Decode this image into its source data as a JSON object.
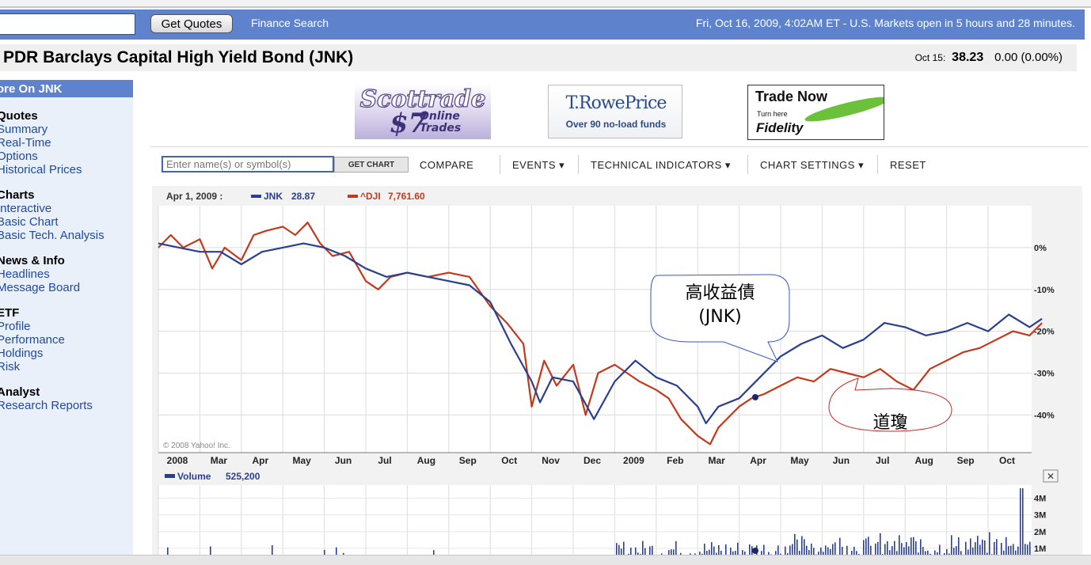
{
  "header": {
    "search_value": "",
    "get_quotes_label": "Get Quotes",
    "finance_search_label": "Finance Search",
    "market_status": "Fri, Oct 16, 2009, 4:02AM ET - U.S. Markets open in 5 hours and 28 minutes."
  },
  "title": {
    "text": "PDR Barclays Capital High Yield Bond (JNK)",
    "quote_date": "Oct 15:",
    "quote_price": "38.23",
    "quote_change": "0.00 (0.00%)"
  },
  "sidebar": {
    "header": "ore On JNK",
    "groups": [
      {
        "title": "Quotes",
        "items": [
          "Summary",
          "Real-Time",
          "Options",
          "Historical Prices"
        ]
      },
      {
        "title": "Charts",
        "items": [
          "Interactive",
          "Basic Chart",
          "Basic Tech. Analysis"
        ]
      },
      {
        "title": "News & Info",
        "items": [
          "Headlines",
          "Message Board"
        ]
      },
      {
        "title": "ETF",
        "items": [
          "Profile",
          "Performance",
          "Holdings",
          "Risk"
        ]
      },
      {
        "title": "Analyst",
        "items": [
          "Research Reports"
        ]
      }
    ]
  },
  "ads": {
    "scottrade": {
      "brand": "Scottrade",
      "price": "$7",
      "line1": "Online",
      "line2": "Trades"
    },
    "trowe": {
      "brand": "T.RowePrice",
      "tagline": "Over 90 no-load funds"
    },
    "fidelity": {
      "headline": "Trade Now",
      "turn": "Turn here",
      "brand": "Fidelity"
    }
  },
  "toolbar": {
    "symbol_placeholder": "Enter name(s) or symbol(s)",
    "get_chart_label": "GET CHART",
    "compare_label": "COMPARE",
    "events_label": "EVENTS",
    "indicators_label": "TECHNICAL INDICATORS",
    "settings_label": "CHART SETTINGS",
    "reset_label": "RESET"
  },
  "colors": {
    "jnk": "#2b3f8f",
    "dji": "#c23a1c",
    "blue_bar": "#5e83cc",
    "nav_bg": "#eaf0fa"
  },
  "chart_data": {
    "type": "line",
    "legend_date": "Apr 1, 2009 :",
    "copyright": "© 2008 Yahoo! Inc.",
    "x_ticks": [
      "2008",
      "Mar",
      "Apr",
      "May",
      "Jun",
      "Jul",
      "Aug",
      "Sep",
      "Oct",
      "Nov",
      "Dec",
      "2009",
      "Feb",
      "Mar",
      "Apr",
      "May",
      "Jun",
      "Jul",
      "Aug",
      "Sep",
      "Oct"
    ],
    "y_ticks": [
      "0%",
      "-10%",
      "-20%",
      "-30%",
      "-40%"
    ],
    "ylim": [
      -49,
      10
    ],
    "series": [
      {
        "name": "JNK",
        "legend_value": "28.87",
        "months": [
          0,
          0.5,
          1,
          1.5,
          2,
          2.5,
          3,
          3.5,
          4,
          4.5,
          5,
          5.5,
          6,
          6.5,
          7,
          7.5,
          8,
          8.5,
          9,
          9.2,
          9.5,
          10,
          10.5,
          11,
          11.5,
          12,
          12.5,
          13,
          13.2,
          13.5,
          14,
          14.5,
          15,
          15.5,
          16,
          16.5,
          17,
          17.5,
          18,
          18.5,
          19,
          19.5,
          20,
          20.5,
          21,
          21.3
        ],
        "values": [
          1,
          0,
          -1,
          -1,
          -4,
          -1,
          0,
          1,
          0,
          -2,
          -5,
          -7,
          -6,
          -7,
          -8,
          -9,
          -13,
          -23,
          -32,
          -37,
          -31,
          -32,
          -41,
          -32,
          -27,
          -31,
          -33,
          -38,
          -42,
          -38,
          -36,
          -31,
          -26,
          -23,
          -21,
          -24,
          -22,
          -18,
          -19,
          -21,
          -20,
          -18,
          -20,
          -16,
          -19,
          -17
        ]
      },
      {
        "name": "^DJI",
        "legend_value": "7,761.60",
        "months": [
          0,
          0.3,
          0.6,
          1,
          1.3,
          1.6,
          2,
          2.3,
          2.6,
          3,
          3.3,
          3.6,
          3.9,
          4.2,
          4.6,
          5,
          5.3,
          5.6,
          6,
          6.5,
          7,
          7.5,
          8,
          8.4,
          8.8,
          9,
          9.3,
          9.6,
          10,
          10.3,
          10.6,
          11,
          11.3,
          11.6,
          12,
          12.3,
          12.6,
          13,
          13.3,
          13.5,
          13.8,
          14,
          14.3,
          14.6,
          15,
          15.4,
          15.8,
          16.2,
          16.6,
          17,
          17.4,
          17.8,
          18.2,
          18.6,
          19,
          19.4,
          19.8,
          20.2,
          20.6,
          21,
          21.3
        ],
        "values": [
          0,
          3,
          0,
          2,
          -5,
          0,
          -3,
          3,
          4,
          5,
          3,
          6,
          1,
          -2,
          -1,
          -8,
          -10,
          -7,
          -6,
          -7,
          -6,
          -7,
          -14,
          -18,
          -23,
          -38,
          -27,
          -33,
          -28,
          -40,
          -30,
          -28,
          -30,
          -32,
          -34,
          -36,
          -41,
          -45,
          -47,
          -43,
          -40,
          -38,
          -36,
          -35,
          -33,
          -31,
          -32,
          -29,
          -30,
          -31,
          -29,
          -32,
          -34,
          -29,
          -27,
          -25,
          -24,
          -22,
          -20,
          -21,
          -18
        ]
      }
    ],
    "volume_label": "Volume",
    "volume_value": "525,200",
    "volume_ticks": [
      "4M",
      "3M",
      "2M",
      "1M"
    ]
  },
  "annotations": {
    "jnk_callout_line1": "高收益債",
    "jnk_callout_line2": "(JNK)",
    "dji_callout": "道瓊"
  }
}
